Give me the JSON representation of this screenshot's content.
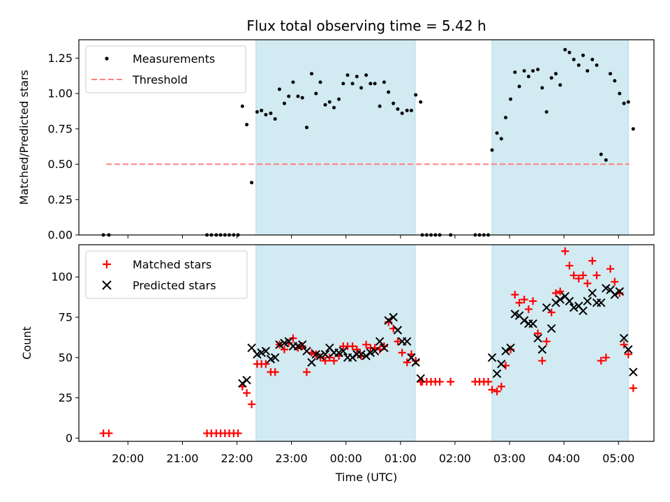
{
  "chart_data": [
    {
      "type": "scatter",
      "title": "Flux total observing time = 5.42 h",
      "xlabel": "",
      "ylabel": "Matched/Predicted stars",
      "ylim": [
        0,
        1.38
      ],
      "yticks": [
        "0.00",
        "0.25",
        "0.50",
        "0.75",
        "1.00",
        "1.25"
      ],
      "x_time_range_h": [
        19.1,
        29.65
      ],
      "shaded_spans_h": [
        [
          22.35,
          25.27
        ],
        [
          26.68,
          29.18
        ]
      ],
      "shade_color": "#add8e6",
      "legend": {
        "placement": "upper-left",
        "entries": [
          "Measurements",
          "Threshold"
        ]
      },
      "threshold": {
        "name": "Threshold",
        "value": 0.5,
        "x_range_h": [
          19.6,
          29.2
        ],
        "color": "#ff7f7f"
      },
      "series": [
        {
          "name": "Measurements",
          "marker": "dot",
          "color": "#000000",
          "points": [
            [
              19.55,
              0.0
            ],
            [
              19.65,
              0.0
            ],
            [
              21.45,
              0.0
            ],
            [
              21.53,
              0.0
            ],
            [
              21.62,
              0.0
            ],
            [
              21.7,
              0.0
            ],
            [
              21.78,
              0.0
            ],
            [
              21.86,
              0.0
            ],
            [
              21.94,
              0.0
            ],
            [
              22.02,
              0.0
            ],
            [
              22.1,
              0.91
            ],
            [
              22.18,
              0.78
            ],
            [
              22.27,
              0.37
            ],
            [
              22.37,
              0.87
            ],
            [
              22.45,
              0.88
            ],
            [
              22.53,
              0.85
            ],
            [
              22.62,
              0.86
            ],
            [
              22.7,
              0.82
            ],
            [
              22.78,
              1.03
            ],
            [
              22.87,
              0.93
            ],
            [
              22.95,
              0.98
            ],
            [
              23.03,
              1.08
            ],
            [
              23.12,
              0.98
            ],
            [
              23.2,
              0.97
            ],
            [
              23.28,
              0.76
            ],
            [
              23.37,
              1.14
            ],
            [
              23.45,
              1.0
            ],
            [
              23.53,
              1.08
            ],
            [
              23.62,
              0.92
            ],
            [
              23.7,
              0.94
            ],
            [
              23.78,
              0.9
            ],
            [
              23.87,
              0.96
            ],
            [
              23.95,
              1.07
            ],
            [
              24.03,
              1.13
            ],
            [
              24.12,
              1.07
            ],
            [
              24.2,
              1.12
            ],
            [
              24.28,
              1.04
            ],
            [
              24.37,
              1.13
            ],
            [
              24.45,
              1.07
            ],
            [
              24.53,
              1.07
            ],
            [
              24.62,
              0.91
            ],
            [
              24.7,
              1.08
            ],
            [
              24.78,
              1.01
            ],
            [
              24.87,
              0.93
            ],
            [
              24.95,
              0.89
            ],
            [
              25.03,
              0.86
            ],
            [
              25.12,
              0.88
            ],
            [
              25.2,
              0.88
            ],
            [
              25.28,
              0.99
            ],
            [
              25.37,
              0.94
            ],
            [
              25.4,
              0.0
            ],
            [
              25.48,
              0.0
            ],
            [
              25.56,
              0.0
            ],
            [
              25.64,
              0.0
            ],
            [
              25.72,
              0.0
            ],
            [
              25.92,
              0.0
            ],
            [
              26.37,
              0.0
            ],
            [
              26.45,
              0.0
            ],
            [
              26.53,
              0.0
            ],
            [
              26.61,
              0.0
            ],
            [
              26.68,
              0.6
            ],
            [
              26.77,
              0.72
            ],
            [
              26.85,
              0.68
            ],
            [
              26.93,
              0.83
            ],
            [
              27.02,
              0.96
            ],
            [
              27.1,
              1.15
            ],
            [
              27.18,
              1.05
            ],
            [
              27.27,
              1.16
            ],
            [
              27.35,
              1.12
            ],
            [
              27.43,
              1.16
            ],
            [
              27.52,
              1.17
            ],
            [
              27.6,
              1.04
            ],
            [
              27.68,
              0.87
            ],
            [
              27.77,
              1.11
            ],
            [
              27.85,
              1.14
            ],
            [
              27.93,
              1.06
            ],
            [
              28.02,
              1.31
            ],
            [
              28.1,
              1.29
            ],
            [
              28.18,
              1.24
            ],
            [
              28.27,
              1.2
            ],
            [
              28.35,
              1.27
            ],
            [
              28.43,
              1.16
            ],
            [
              28.52,
              1.24
            ],
            [
              28.6,
              1.2
            ],
            [
              28.68,
              0.57
            ],
            [
              28.77,
              0.53
            ],
            [
              28.85,
              1.14
            ],
            [
              28.93,
              1.09
            ],
            [
              29.02,
              1.0
            ],
            [
              29.1,
              0.93
            ],
            [
              29.18,
              0.94
            ],
            [
              29.27,
              0.75
            ]
          ]
        }
      ]
    },
    {
      "type": "scatter",
      "title": "",
      "xlabel": "Time (UTC)",
      "ylabel": "Count",
      "ylim": [
        -2,
        120
      ],
      "yticks": [
        "0",
        "25",
        "50",
        "75",
        "100"
      ],
      "x_time_range_h": [
        19.1,
        29.65
      ],
      "xticks": [
        "20:00",
        "21:00",
        "22:00",
        "23:00",
        "00:00",
        "01:00",
        "02:00",
        "03:00",
        "04:00",
        "05:00"
      ],
      "shaded_spans_h": [
        [
          22.35,
          25.27
        ],
        [
          26.68,
          29.18
        ]
      ],
      "shade_color": "#add8e6",
      "legend": {
        "placement": "upper-left",
        "entries": [
          "Matched stars",
          "Predicted stars"
        ]
      },
      "series": [
        {
          "name": "Matched stars",
          "marker": "plus",
          "color": "#ff0000",
          "points": [
            [
              19.55,
              3
            ],
            [
              19.65,
              3
            ],
            [
              21.45,
              3
            ],
            [
              21.53,
              3
            ],
            [
              21.62,
              3
            ],
            [
              21.7,
              3
            ],
            [
              21.78,
              3
            ],
            [
              21.86,
              3
            ],
            [
              21.94,
              3
            ],
            [
              22.02,
              3
            ],
            [
              22.1,
              32
            ],
            [
              22.18,
              28
            ],
            [
              22.27,
              21
            ],
            [
              22.37,
              46
            ],
            [
              22.45,
              46
            ],
            [
              22.53,
              46
            ],
            [
              22.62,
              41
            ],
            [
              22.7,
              41
            ],
            [
              22.78,
              58
            ],
            [
              22.87,
              55
            ],
            [
              22.95,
              59
            ],
            [
              23.03,
              62
            ],
            [
              23.12,
              56
            ],
            [
              23.2,
              57
            ],
            [
              23.28,
              41
            ],
            [
              23.37,
              53
            ],
            [
              23.45,
              52
            ],
            [
              23.53,
              50
            ],
            [
              23.62,
              48
            ],
            [
              23.7,
              50
            ],
            [
              23.78,
              48
            ],
            [
              23.87,
              51
            ],
            [
              23.95,
              57
            ],
            [
              24.03,
              57
            ],
            [
              24.12,
              57
            ],
            [
              24.2,
              55
            ],
            [
              24.28,
              51
            ],
            [
              24.37,
              58
            ],
            [
              24.45,
              56
            ],
            [
              24.53,
              56
            ],
            [
              24.62,
              55
            ],
            [
              24.7,
              57
            ],
            [
              24.78,
              72
            ],
            [
              24.87,
              68
            ],
            [
              24.95,
              60
            ],
            [
              25.03,
              53
            ],
            [
              25.12,
              47
            ],
            [
              25.2,
              52
            ],
            [
              25.28,
              48
            ],
            [
              25.37,
              35
            ],
            [
              25.4,
              35
            ],
            [
              25.48,
              35
            ],
            [
              25.56,
              35
            ],
            [
              25.64,
              35
            ],
            [
              25.72,
              35
            ],
            [
              25.92,
              35
            ],
            [
              26.37,
              35
            ],
            [
              26.45,
              35
            ],
            [
              26.53,
              35
            ],
            [
              26.61,
              35
            ],
            [
              26.68,
              30
            ],
            [
              26.77,
              29
            ],
            [
              26.85,
              32
            ],
            [
              26.93,
              45
            ],
            [
              27.02,
              55
            ],
            [
              27.1,
              89
            ],
            [
              27.18,
              84
            ],
            [
              27.27,
              86
            ],
            [
              27.35,
              80
            ],
            [
              27.43,
              85
            ],
            [
              27.52,
              65
            ],
            [
              27.6,
              48
            ],
            [
              27.68,
              60
            ],
            [
              27.77,
              78
            ],
            [
              27.85,
              90
            ],
            [
              27.93,
              91
            ],
            [
              28.02,
              116
            ],
            [
              28.1,
              107
            ],
            [
              28.18,
              101
            ],
            [
              28.27,
              99
            ],
            [
              28.35,
              101
            ],
            [
              28.43,
              96
            ],
            [
              28.52,
              110
            ],
            [
              28.6,
              101
            ],
            [
              28.68,
              48
            ],
            [
              28.77,
              50
            ],
            [
              28.85,
              105
            ],
            [
              28.93,
              97
            ],
            [
              29.02,
              90
            ],
            [
              29.1,
              58
            ],
            [
              29.18,
              52
            ],
            [
              29.27,
              31
            ]
          ]
        },
        {
          "name": "Predicted stars",
          "marker": "x",
          "color": "#000000",
          "points": [
            [
              22.1,
              34
            ],
            [
              22.18,
              36
            ],
            [
              22.27,
              56
            ],
            [
              22.37,
              52
            ],
            [
              22.45,
              53
            ],
            [
              22.53,
              54
            ],
            [
              22.62,
              49
            ],
            [
              22.7,
              50
            ],
            [
              22.78,
              58
            ],
            [
              22.87,
              59
            ],
            [
              22.95,
              60
            ],
            [
              23.03,
              57
            ],
            [
              23.12,
              57
            ],
            [
              23.2,
              58
            ],
            [
              23.28,
              54
            ],
            [
              23.37,
              47
            ],
            [
              23.45,
              52
            ],
            [
              23.53,
              51
            ],
            [
              23.62,
              52
            ],
            [
              23.7,
              56
            ],
            [
              23.78,
              53
            ],
            [
              23.87,
              53
            ],
            [
              23.95,
              54
            ],
            [
              24.03,
              50
            ],
            [
              24.12,
              50
            ],
            [
              24.2,
              52
            ],
            [
              24.28,
              52
            ],
            [
              24.37,
              51
            ],
            [
              24.45,
              53
            ],
            [
              24.53,
              54
            ],
            [
              24.62,
              60
            ],
            [
              24.7,
              56
            ],
            [
              24.78,
              73
            ],
            [
              24.87,
              75
            ],
            [
              24.95,
              67
            ],
            [
              25.03,
              60
            ],
            [
              25.12,
              60
            ],
            [
              25.2,
              50
            ],
            [
              25.28,
              47
            ],
            [
              25.37,
              37
            ],
            [
              26.68,
              50
            ],
            [
              26.77,
              40
            ],
            [
              26.85,
              46
            ],
            [
              26.93,
              54
            ],
            [
              27.02,
              56
            ],
            [
              27.1,
              77
            ],
            [
              27.18,
              76
            ],
            [
              27.27,
              73
            ],
            [
              27.35,
              71
            ],
            [
              27.43,
              71
            ],
            [
              27.52,
              62
            ],
            [
              27.6,
              55
            ],
            [
              27.68,
              81
            ],
            [
              27.77,
              68
            ],
            [
              27.85,
              84
            ],
            [
              27.93,
              86
            ],
            [
              28.02,
              88
            ],
            [
              28.1,
              85
            ],
            [
              28.18,
              81
            ],
            [
              28.27,
              82
            ],
            [
              28.35,
              79
            ],
            [
              28.43,
              85
            ],
            [
              28.52,
              90
            ],
            [
              28.6,
              84
            ],
            [
              28.68,
              84
            ],
            [
              28.77,
              93
            ],
            [
              28.85,
              92
            ],
            [
              28.93,
              89
            ],
            [
              29.02,
              91
            ],
            [
              29.1,
              62
            ],
            [
              29.18,
              55
            ],
            [
              29.27,
              41
            ]
          ]
        }
      ]
    }
  ]
}
